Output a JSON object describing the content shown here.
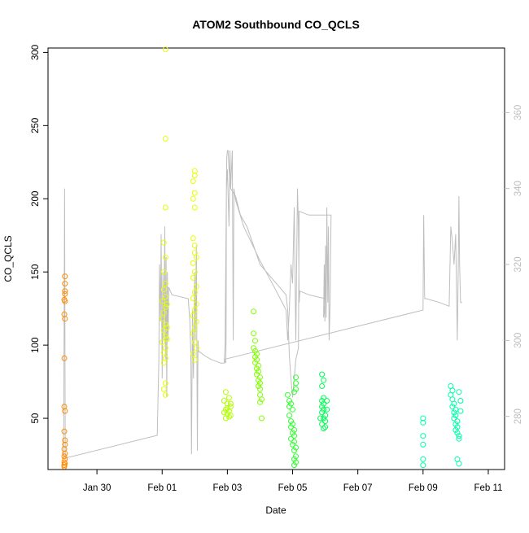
{
  "chart_data": {
    "type": "scatter",
    "title": "ATOM2 Southbound CO_QCLS",
    "xlabel": "Date",
    "ylabel": "CO_QCLS",
    "x_ticks": [
      "Jan 30",
      "Feb 01",
      "Feb 03",
      "Feb 05",
      "Feb 07",
      "Feb 09",
      "Feb 11"
    ],
    "x_tick_days": [
      0,
      2,
      4,
      6,
      8,
      10,
      12
    ],
    "xlim_days": [
      -1.5,
      12.5
    ],
    "y_ticks": [
      50,
      100,
      150,
      200,
      250,
      300
    ],
    "ylim": [
      15,
      303
    ],
    "y2_ticks": [
      280,
      300,
      320,
      340,
      360
    ],
    "y2lim": [
      266,
      377
    ],
    "point_series": [
      {
        "color": "#ff8c00",
        "points": [
          [
            -1.0,
            18
          ],
          [
            -1.0,
            20
          ],
          [
            -0.98,
            22
          ],
          [
            -1.0,
            24
          ],
          [
            -0.98,
            26
          ],
          [
            -1.0,
            29
          ],
          [
            -0.98,
            32
          ],
          [
            -0.98,
            35
          ],
          [
            -1.0,
            41
          ],
          [
            -0.98,
            55
          ],
          [
            -1.0,
            58
          ],
          [
            -1.0,
            91
          ],
          [
            -0.98,
            118
          ],
          [
            -1.0,
            121
          ],
          [
            -0.98,
            130
          ],
          [
            -1.0,
            131
          ],
          [
            -0.98,
            135
          ],
          [
            -0.98,
            137
          ],
          [
            -0.98,
            142
          ],
          [
            -0.98,
            147
          ],
          [
            -1.0,
            17
          ],
          [
            -0.98,
            19
          ]
        ]
      },
      {
        "color": "#e6ff00",
        "points": [
          [
            2.1,
            302
          ],
          [
            2.1,
            241
          ],
          [
            2.1,
            194
          ],
          [
            2.05,
            170
          ],
          [
            2.1,
            160
          ],
          [
            2.05,
            150
          ],
          [
            2.1,
            142
          ],
          [
            2.05,
            138
          ],
          [
            2.1,
            133
          ],
          [
            2.0,
            130
          ],
          [
            2.1,
            126
          ],
          [
            2.05,
            122
          ],
          [
            2.0,
            118
          ],
          [
            2.1,
            114
          ],
          [
            2.05,
            110
          ],
          [
            2.1,
            106
          ],
          [
            2.0,
            102
          ],
          [
            2.1,
            98
          ],
          [
            2.05,
            95
          ],
          [
            2.1,
            91
          ],
          [
            2.05,
            88
          ],
          [
            2.1,
            74
          ],
          [
            2.05,
            70
          ],
          [
            2.1,
            66
          ],
          [
            2.15,
            112
          ],
          [
            2.15,
            128
          ],
          [
            2.15,
            104
          ],
          [
            3.0,
            219
          ],
          [
            3.0,
            216
          ],
          [
            2.95,
            212
          ],
          [
            3.0,
            204
          ],
          [
            2.95,
            200
          ],
          [
            3.0,
            194
          ],
          [
            2.95,
            173
          ],
          [
            3.0,
            168
          ],
          [
            3.0,
            163
          ],
          [
            3.05,
            160
          ],
          [
            2.95,
            156
          ],
          [
            3.0,
            150
          ],
          [
            2.95,
            146
          ],
          [
            3.05,
            140
          ],
          [
            3.0,
            136
          ],
          [
            2.95,
            132
          ],
          [
            3.05,
            128
          ],
          [
            3.0,
            124
          ],
          [
            2.95,
            120
          ],
          [
            3.05,
            116
          ],
          [
            3.0,
            112
          ],
          [
            2.95,
            108
          ],
          [
            3.0,
            102
          ],
          [
            3.05,
            98
          ],
          [
            2.95,
            94
          ],
          [
            3.0,
            90
          ]
        ]
      },
      {
        "color": "#b3ff00",
        "points": [
          [
            3.95,
            68
          ],
          [
            4.05,
            64
          ],
          [
            3.9,
            62
          ],
          [
            4.0,
            60
          ],
          [
            4.1,
            58
          ],
          [
            3.95,
            56
          ],
          [
            4.05,
            55
          ],
          [
            4.0,
            53
          ],
          [
            4.1,
            52
          ],
          [
            3.95,
            50
          ],
          [
            4.05,
            51
          ],
          [
            4.0,
            57
          ],
          [
            3.9,
            54
          ],
          [
            4.1,
            60
          ]
        ]
      },
      {
        "color": "#80ff00",
        "points": [
          [
            4.8,
            123
          ],
          [
            4.8,
            108
          ],
          [
            4.85,
            103
          ],
          [
            4.8,
            98
          ],
          [
            4.85,
            96
          ],
          [
            4.9,
            94
          ],
          [
            4.85,
            92
          ],
          [
            4.9,
            90
          ],
          [
            4.85,
            88
          ],
          [
            4.95,
            86
          ],
          [
            4.9,
            84
          ],
          [
            4.95,
            82
          ],
          [
            4.9,
            80
          ],
          [
            5.0,
            78
          ],
          [
            4.95,
            76
          ],
          [
            5.0,
            74
          ],
          [
            4.95,
            72
          ],
          [
            5.0,
            70
          ],
          [
            5.0,
            66
          ],
          [
            5.05,
            63
          ],
          [
            5.0,
            61
          ],
          [
            5.05,
            50
          ]
        ]
      },
      {
        "color": "#33ff33",
        "points": [
          [
            5.85,
            66
          ],
          [
            5.9,
            62
          ],
          [
            5.95,
            60
          ],
          [
            5.9,
            58
          ],
          [
            6.0,
            56
          ],
          [
            5.9,
            52
          ],
          [
            5.95,
            48
          ],
          [
            6.0,
            46
          ],
          [
            5.95,
            44
          ],
          [
            6.05,
            42
          ],
          [
            6.0,
            40
          ],
          [
            6.05,
            38
          ],
          [
            5.95,
            36
          ],
          [
            6.05,
            34
          ],
          [
            6.0,
            32
          ],
          [
            6.1,
            30
          ],
          [
            6.05,
            28
          ],
          [
            6.1,
            24
          ],
          [
            6.05,
            22
          ],
          [
            6.1,
            20
          ],
          [
            6.05,
            18
          ],
          [
            6.1,
            78
          ],
          [
            6.1,
            74
          ],
          [
            6.1,
            70
          ],
          [
            6.05,
            68
          ]
        ]
      },
      {
        "color": "#00ff55",
        "points": [
          [
            6.9,
            80
          ],
          [
            6.95,
            76
          ],
          [
            6.9,
            72
          ],
          [
            6.95,
            64
          ],
          [
            6.9,
            62
          ],
          [
            6.95,
            60
          ],
          [
            6.9,
            58
          ],
          [
            6.95,
            56
          ],
          [
            6.9,
            54
          ],
          [
            7.0,
            52
          ],
          [
            6.95,
            50
          ],
          [
            7.0,
            48
          ],
          [
            6.9,
            46
          ],
          [
            7.0,
            44
          ],
          [
            6.95,
            43
          ],
          [
            7.05,
            62
          ],
          [
            7.05,
            56
          ],
          [
            6.85,
            50
          ]
        ]
      },
      {
        "color": "#00ffaa",
        "points": [
          [
            10.0,
            50
          ],
          [
            10.0,
            47
          ],
          [
            10.0,
            38
          ],
          [
            10.0,
            32
          ],
          [
            10.0,
            22
          ],
          [
            10.0,
            18
          ],
          [
            10.85,
            72
          ],
          [
            10.9,
            69
          ],
          [
            10.85,
            66
          ],
          [
            10.9,
            63
          ],
          [
            10.95,
            60
          ],
          [
            10.9,
            58
          ],
          [
            11.0,
            56
          ],
          [
            10.95,
            54
          ],
          [
            11.0,
            52
          ],
          [
            10.95,
            50
          ],
          [
            11.05,
            48
          ],
          [
            11.0,
            46
          ],
          [
            11.05,
            44
          ],
          [
            11.0,
            42
          ],
          [
            11.05,
            40
          ],
          [
            11.1,
            38
          ],
          [
            11.1,
            36
          ],
          [
            11.05,
            22
          ],
          [
            11.1,
            19
          ],
          [
            11.15,
            62
          ],
          [
            11.15,
            55
          ],
          [
            11.1,
            68
          ]
        ]
      }
    ],
    "line_series": {
      "color": "#bebebe",
      "axis": "right",
      "points": [
        [
          -1.02,
          269
        ],
        [
          -0.99,
          340
        ],
        [
          -0.98,
          300
        ],
        [
          -0.97,
          269
        ],
        [
          1.85,
          275
        ],
        [
          1.9,
          295
        ],
        [
          1.92,
          320
        ],
        [
          1.95,
          305
        ],
        [
          1.97,
          328
        ],
        [
          2.0,
          290
        ],
        [
          2.02,
          318
        ],
        [
          2.05,
          300
        ],
        [
          2.08,
          330
        ],
        [
          2.1,
          295
        ],
        [
          2.12,
          322
        ],
        [
          2.14,
          285
        ],
        [
          2.16,
          318
        ],
        [
          2.18,
          300
        ],
        [
          2.2,
          314
        ],
        [
          2.25,
          313
        ],
        [
          2.3,
          312
        ],
        [
          2.8,
          311
        ],
        [
          2.85,
          305
        ],
        [
          2.88,
          296
        ],
        [
          2.9,
          270
        ],
        [
          2.93,
          308
        ],
        [
          2.96,
          290
        ],
        [
          3.0,
          318
        ],
        [
          3.02,
          300
        ],
        [
          3.05,
          325
        ],
        [
          3.08,
          271
        ],
        [
          3.1,
          300
        ],
        [
          3.12,
          297
        ],
        [
          3.15,
          297
        ],
        [
          3.3,
          296
        ],
        [
          3.5,
          295
        ],
        [
          3.8,
          294
        ],
        [
          3.9,
          294
        ],
        [
          3.93,
          299
        ],
        [
          3.95,
          320
        ],
        [
          3.97,
          340
        ],
        [
          4.0,
          345
        ],
        [
          4.05,
          330
        ],
        [
          4.08,
          350
        ],
        [
          4.1,
          340
        ],
        [
          4.15,
          350
        ],
        [
          4.18,
          300
        ],
        [
          4.2,
          340
        ],
        [
          4.25,
          337
        ],
        [
          4.5,
          330
        ],
        [
          5.0,
          321
        ],
        [
          5.5,
          313
        ],
        [
          5.8,
          308
        ],
        [
          5.85,
          300
        ],
        [
          5.9,
          308
        ],
        [
          5.95,
          320
        ],
        [
          6.0,
          315
        ],
        [
          6.05,
          335
        ],
        [
          6.1,
          300
        ],
        [
          6.15,
          340
        ],
        [
          6.18,
          330
        ],
        [
          6.2,
          310
        ],
        [
          6.22,
          313
        ],
        [
          6.5,
          312
        ],
        [
          7.0,
          311
        ],
        [
          6.95,
          306
        ],
        [
          6.97,
          320
        ],
        [
          6.99,
          305
        ],
        [
          7.01,
          325
        ],
        [
          7.03,
          306
        ],
        [
          7.05,
          335
        ],
        [
          7.08,
          310
        ],
        [
          7.1,
          330
        ],
        [
          7.12,
          300
        ],
        [
          7.15,
          310
        ],
        [
          7.18,
          333
        ],
        [
          6.9,
          333
        ],
        [
          6.5,
          333
        ],
        [
          6.2,
          334
        ],
        [
          6.18,
          298
        ],
        [
          6.1,
          295
        ],
        [
          6.05,
          290
        ],
        [
          6.0,
          285
        ],
        [
          5.95,
          290
        ],
        [
          5.9,
          296
        ],
        [
          5.85,
          308
        ],
        [
          5.8,
          312
        ],
        [
          5.5,
          315
        ],
        [
          5.2,
          318
        ],
        [
          5.0,
          320
        ],
        [
          4.8,
          325
        ],
        [
          4.6,
          330
        ],
        [
          4.4,
          333
        ],
        [
          4.25,
          338
        ],
        [
          4.1,
          340
        ],
        [
          4.05,
          345
        ],
        [
          4.02,
          350
        ],
        [
          4.0,
          350
        ],
        [
          3.98,
          348
        ],
        [
          3.97,
          340
        ],
        [
          3.96,
          300
        ],
        [
          3.95,
          294
        ],
        [
          3.9,
          295
        ],
        [
          10.0,
          308
        ],
        [
          10.02,
          333
        ],
        [
          10.05,
          311
        ],
        [
          10.1,
          311
        ],
        [
          10.5,
          310
        ],
        [
          10.8,
          309
        ],
        [
          10.85,
          330
        ],
        [
          10.9,
          326
        ],
        [
          10.95,
          320
        ],
        [
          11.0,
          328
        ],
        [
          11.05,
          300
        ],
        [
          11.08,
          320
        ],
        [
          11.1,
          338
        ],
        [
          11.12,
          320
        ],
        [
          11.15,
          310
        ],
        [
          11.2,
          310
        ]
      ]
    }
  }
}
